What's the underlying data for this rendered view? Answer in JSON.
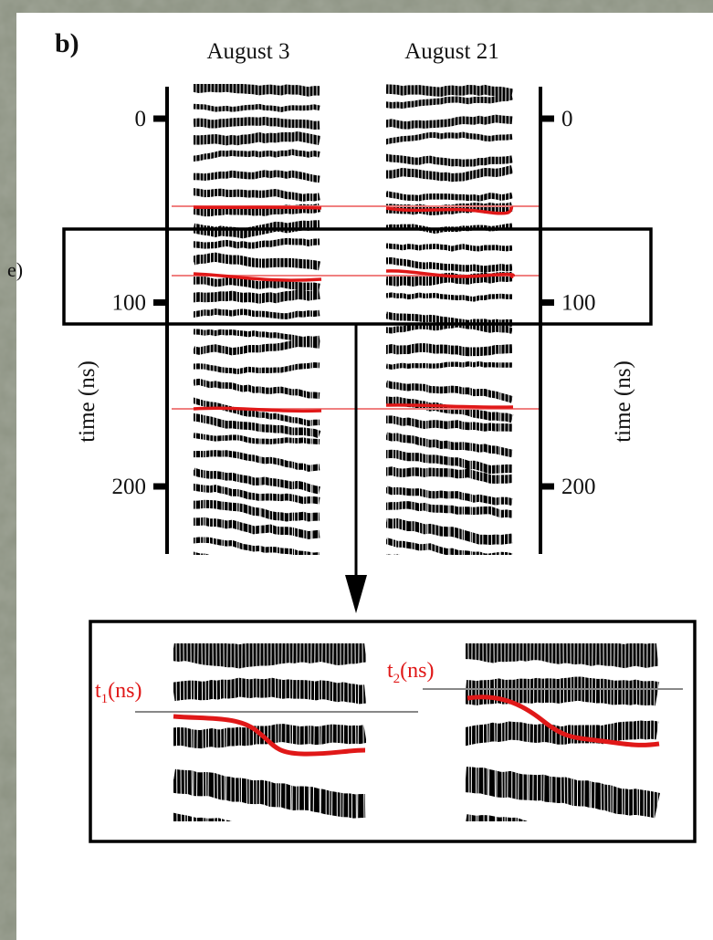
{
  "figure": {
    "panel_label": "b)",
    "side_label": "e)",
    "columns": [
      "August 3",
      "August 21"
    ],
    "left_axis": {
      "label": "time (ns)",
      "ticks": [
        0,
        100,
        200
      ]
    },
    "right_axis": {
      "label": "time (ns)",
      "ticks": [
        0,
        100,
        200
      ]
    },
    "inset": {
      "left_label": {
        "base": "t",
        "sub": "1",
        "unit": "(ns)"
      },
      "right_label": {
        "base": "t",
        "sub": "2",
        "unit": "(ns)"
      }
    }
  }
}
